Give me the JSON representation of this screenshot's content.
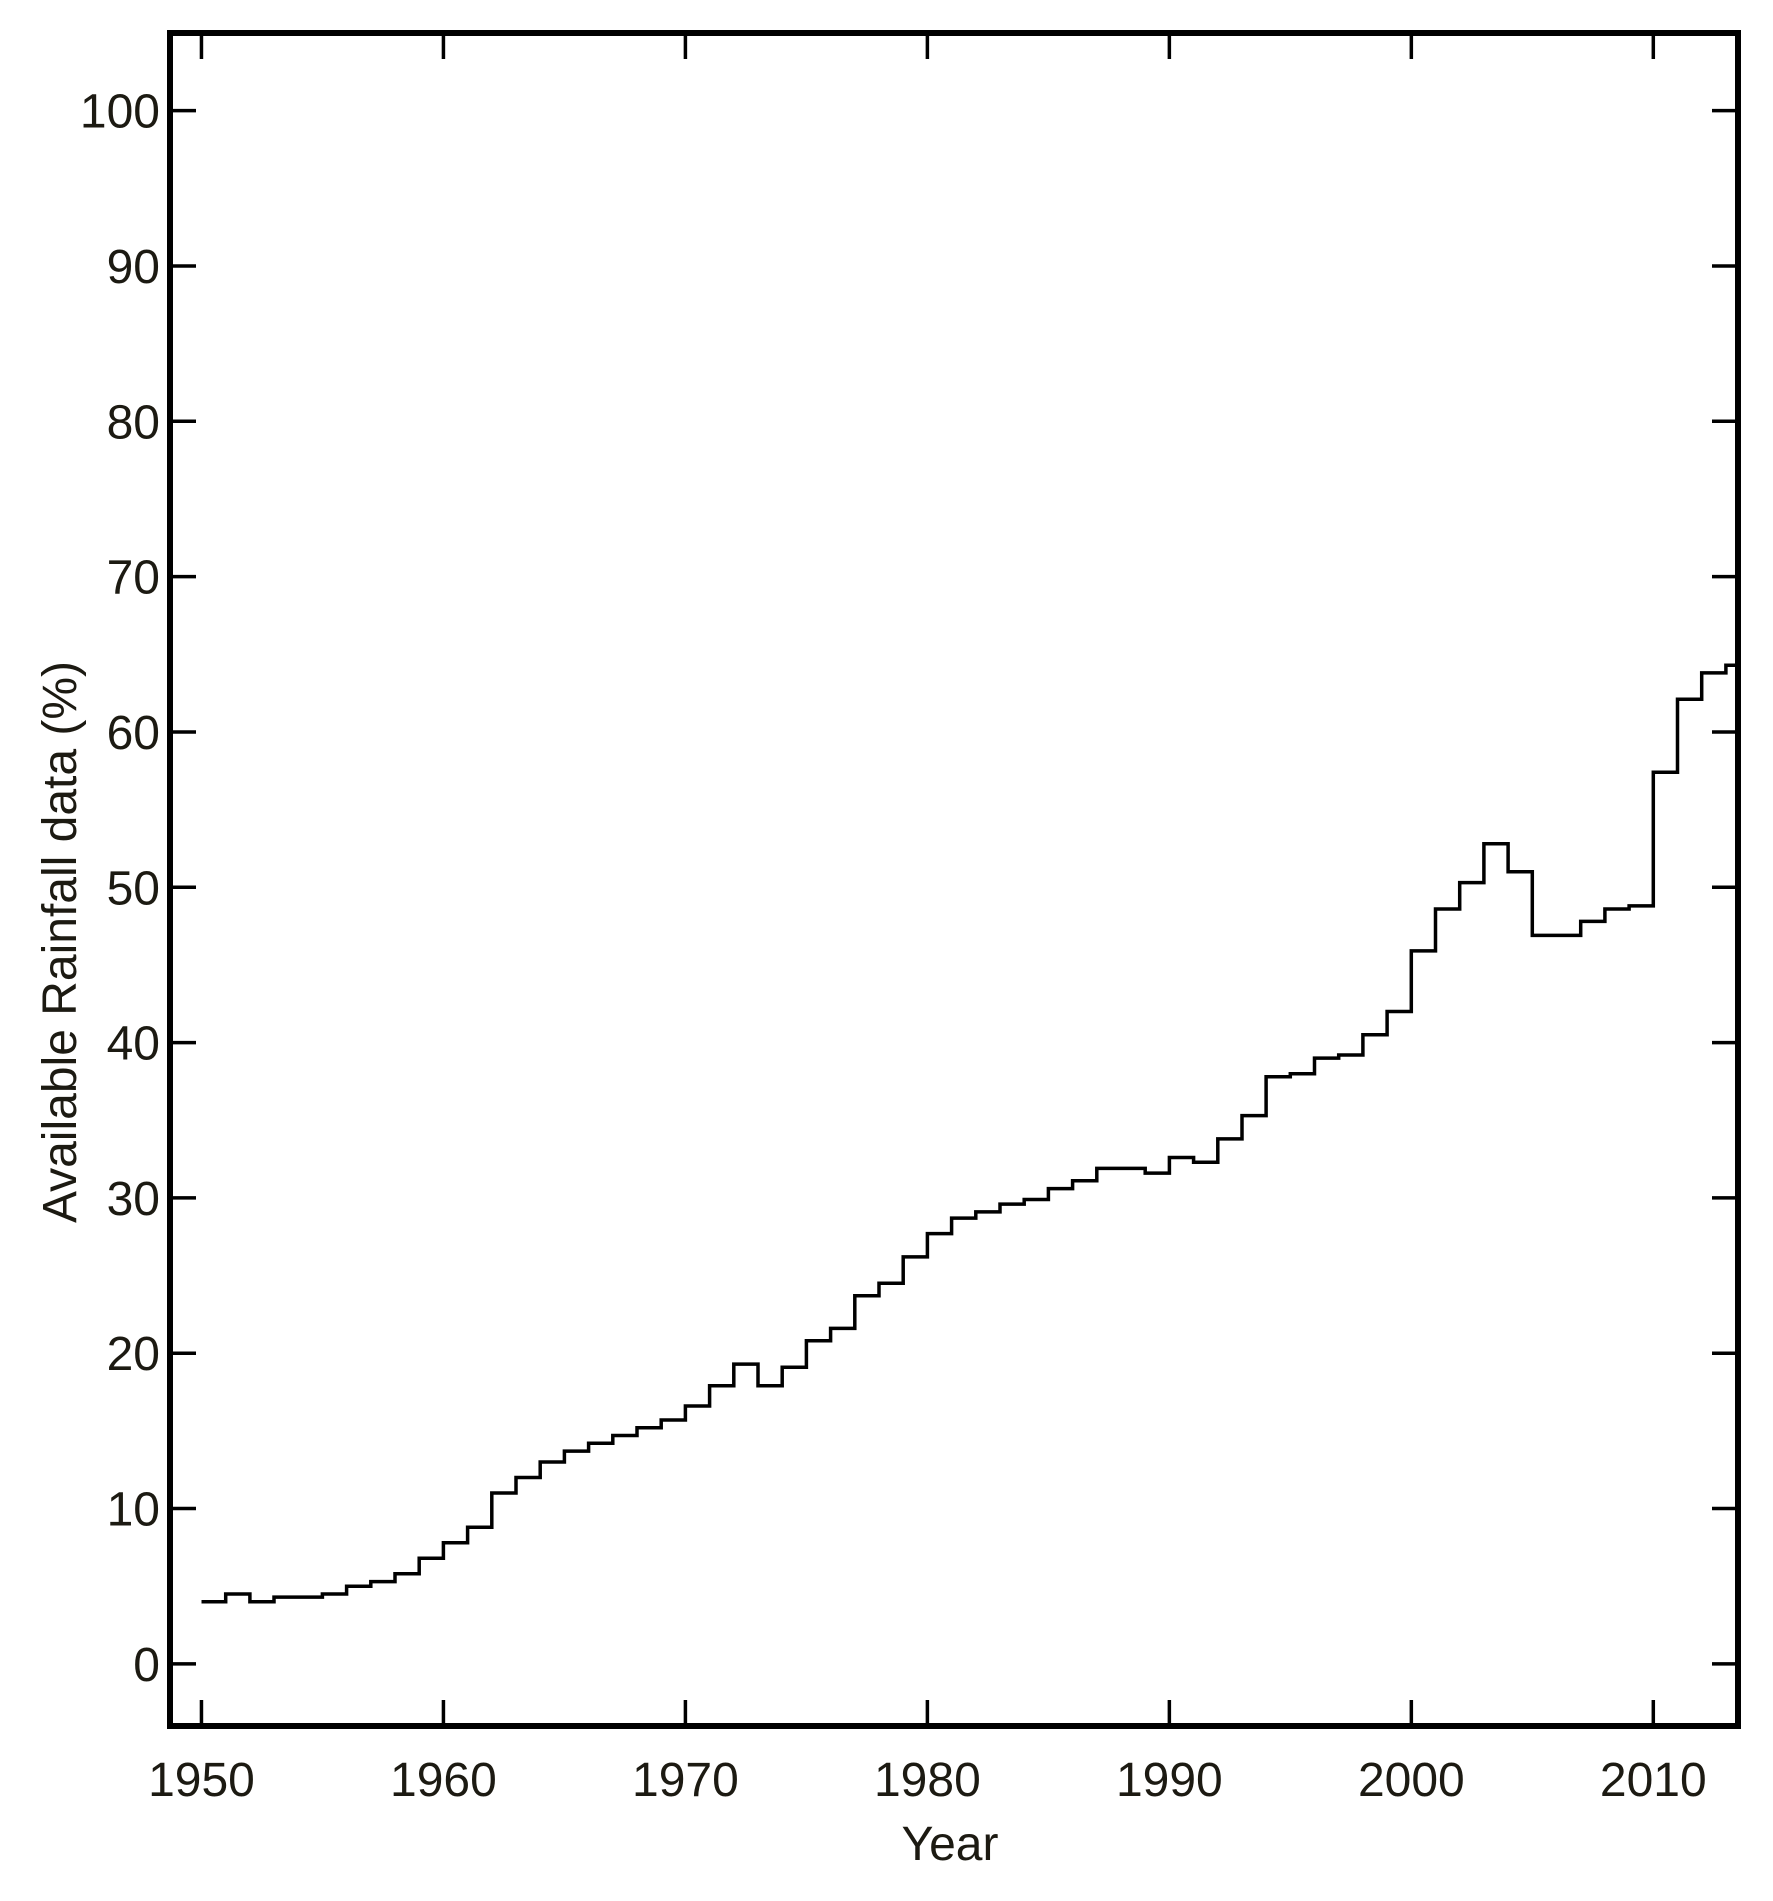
{
  "chart_data": {
    "type": "line",
    "step": true,
    "title": "",
    "xlabel": "Year",
    "ylabel": "Available Rainfall data (%)",
    "xlim": [
      1948.7,
      2013.5
    ],
    "ylim": [
      -4,
      105
    ],
    "xticks": [
      1950,
      1960,
      1970,
      1980,
      1990,
      2000,
      2010
    ],
    "yticks": [
      0,
      10,
      20,
      30,
      40,
      50,
      60,
      70,
      80,
      90,
      100
    ],
    "grid": false,
    "series": [
      {
        "x": [
          1950,
          1951,
          1952,
          1953,
          1954,
          1955,
          1956,
          1957,
          1958,
          1959,
          1960,
          1961,
          1962,
          1963,
          1964,
          1965,
          1966,
          1967,
          1968,
          1969,
          1970,
          1971,
          1972,
          1973,
          1974,
          1975,
          1976,
          1977,
          1978,
          1979,
          1980,
          1981,
          1982,
          1983,
          1984,
          1985,
          1986,
          1987,
          1988,
          1989,
          1990,
          1991,
          1992,
          1993,
          1994,
          1995,
          1996,
          1997,
          1998,
          1999,
          2000,
          2001,
          2002,
          2003,
          2004,
          2005,
          2006,
          2007,
          2008,
          2009,
          2010,
          2011,
          2012,
          2013
        ],
        "y": [
          4.0,
          4.5,
          4.0,
          4.3,
          4.3,
          4.5,
          5.0,
          5.3,
          5.8,
          6.8,
          7.8,
          8.8,
          11.0,
          12.0,
          13.0,
          13.7,
          14.2,
          14.7,
          15.2,
          15.7,
          16.6,
          17.9,
          19.3,
          17.9,
          19.1,
          20.8,
          21.6,
          23.7,
          24.5,
          26.2,
          27.7,
          28.7,
          29.1,
          29.6,
          29.9,
          30.6,
          31.1,
          31.9,
          31.9,
          31.6,
          32.6,
          32.3,
          33.8,
          35.3,
          37.8,
          38.0,
          39.0,
          39.2,
          40.5,
          42.0,
          45.9,
          48.6,
          50.3,
          52.8,
          51.0,
          46.9,
          46.9,
          47.8,
          48.6,
          48.8,
          57.4,
          62.1,
          63.8,
          64.3
        ]
      }
    ]
  }
}
